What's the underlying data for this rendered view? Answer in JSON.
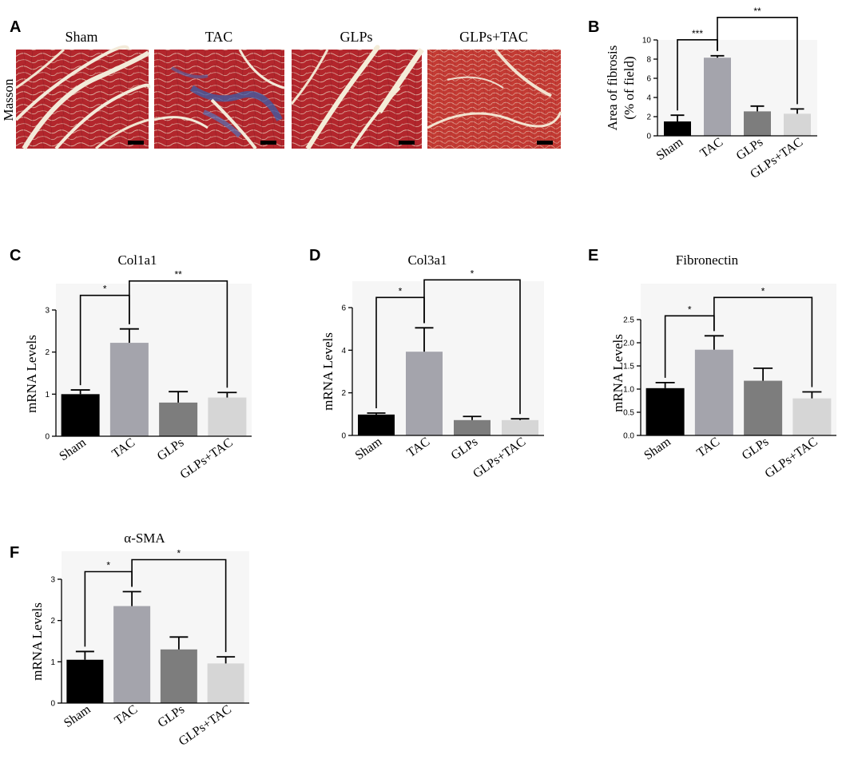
{
  "panel_a": {
    "letter": "A",
    "row_label": "Masson",
    "groups": [
      "Sham",
      "TAC",
      "GLPs",
      "GLPs+TAC"
    ]
  },
  "colors": {
    "Sham": "#000000",
    "TAC": "#a4a4ac",
    "GLPs": "#7d7d7d",
    "GLPs+TAC": "#d6d6d6"
  },
  "chart_data": [
    {
      "id": "B",
      "letter": "B",
      "type": "bar",
      "title": "",
      "ylabel": [
        "Area of fibrosis",
        "(% of field)"
      ],
      "categories": [
        "Sham",
        "TAC",
        "GLPs",
        "GLPs+TAC"
      ],
      "values": [
        1.5,
        8.15,
        2.55,
        2.3
      ],
      "errors": [
        0.65,
        0.2,
        0.55,
        0.5
      ],
      "ylim": [
        0,
        10
      ],
      "yticks": [
        "0",
        "2",
        "4",
        "6",
        "8",
        "10"
      ],
      "significance": [
        {
          "from": 0,
          "to": 1,
          "label": "***"
        },
        {
          "from": 1,
          "to": 3,
          "label": "**"
        }
      ]
    },
    {
      "id": "C",
      "letter": "C",
      "type": "bar",
      "title": "Col1a1",
      "ylabel": [
        "mRNA Levels"
      ],
      "categories": [
        "Sham",
        "TAC",
        "GLPs",
        "GLPs+TAC"
      ],
      "values": [
        1.0,
        2.22,
        0.8,
        0.92
      ],
      "errors": [
        0.1,
        0.33,
        0.26,
        0.12
      ],
      "ylim": [
        0,
        3
      ],
      "yticks": [
        "0",
        "1",
        "2",
        "3"
      ],
      "significance": [
        {
          "from": 0,
          "to": 1,
          "label": "*"
        },
        {
          "from": 1,
          "to": 3,
          "label": "**"
        }
      ]
    },
    {
      "id": "D",
      "letter": "D",
      "type": "bar",
      "title": "Col3a1",
      "ylabel": [
        "mRNA Levels"
      ],
      "categories": [
        "Sham",
        "TAC",
        "GLPs",
        "GLPs+TAC"
      ],
      "values": [
        0.98,
        3.93,
        0.72,
        0.72
      ],
      "errors": [
        0.07,
        1.12,
        0.17,
        0.06
      ],
      "ylim": [
        0,
        6
      ],
      "yticks": [
        "0",
        "2",
        "4",
        "6"
      ],
      "significance": [
        {
          "from": 0,
          "to": 1,
          "label": "*"
        },
        {
          "from": 1,
          "to": 3,
          "label": "*"
        }
      ]
    },
    {
      "id": "E",
      "letter": "E",
      "type": "bar",
      "title": "Fibronectin",
      "ylabel": [
        "mRNA Levels"
      ],
      "categories": [
        "Sham",
        "TAC",
        "GLPs",
        "GLPs+TAC"
      ],
      "values": [
        1.02,
        1.85,
        1.18,
        0.8
      ],
      "errors": [
        0.12,
        0.3,
        0.27,
        0.14
      ],
      "ylim": [
        0,
        2.5
      ],
      "yticks": [
        "0.0",
        "0.5",
        "1.0",
        "1.5",
        "2.0",
        "2.5"
      ],
      "significance": [
        {
          "from": 0,
          "to": 1,
          "label": "*"
        },
        {
          "from": 1,
          "to": 3,
          "label": "*"
        }
      ]
    },
    {
      "id": "F",
      "letter": "F",
      "type": "bar",
      "title": "α-SMA",
      "ylabel": [
        "mRNA Levels"
      ],
      "categories": [
        "Sham",
        "TAC",
        "GLPs",
        "GLPs+TAC"
      ],
      "values": [
        1.05,
        2.35,
        1.3,
        0.96
      ],
      "errors": [
        0.2,
        0.35,
        0.3,
        0.16
      ],
      "ylim": [
        0,
        3
      ],
      "yticks": [
        "0",
        "1",
        "2",
        "3"
      ],
      "significance": [
        {
          "from": 0,
          "to": 1,
          "label": "*"
        },
        {
          "from": 1,
          "to": 3,
          "label": "*"
        }
      ]
    }
  ]
}
